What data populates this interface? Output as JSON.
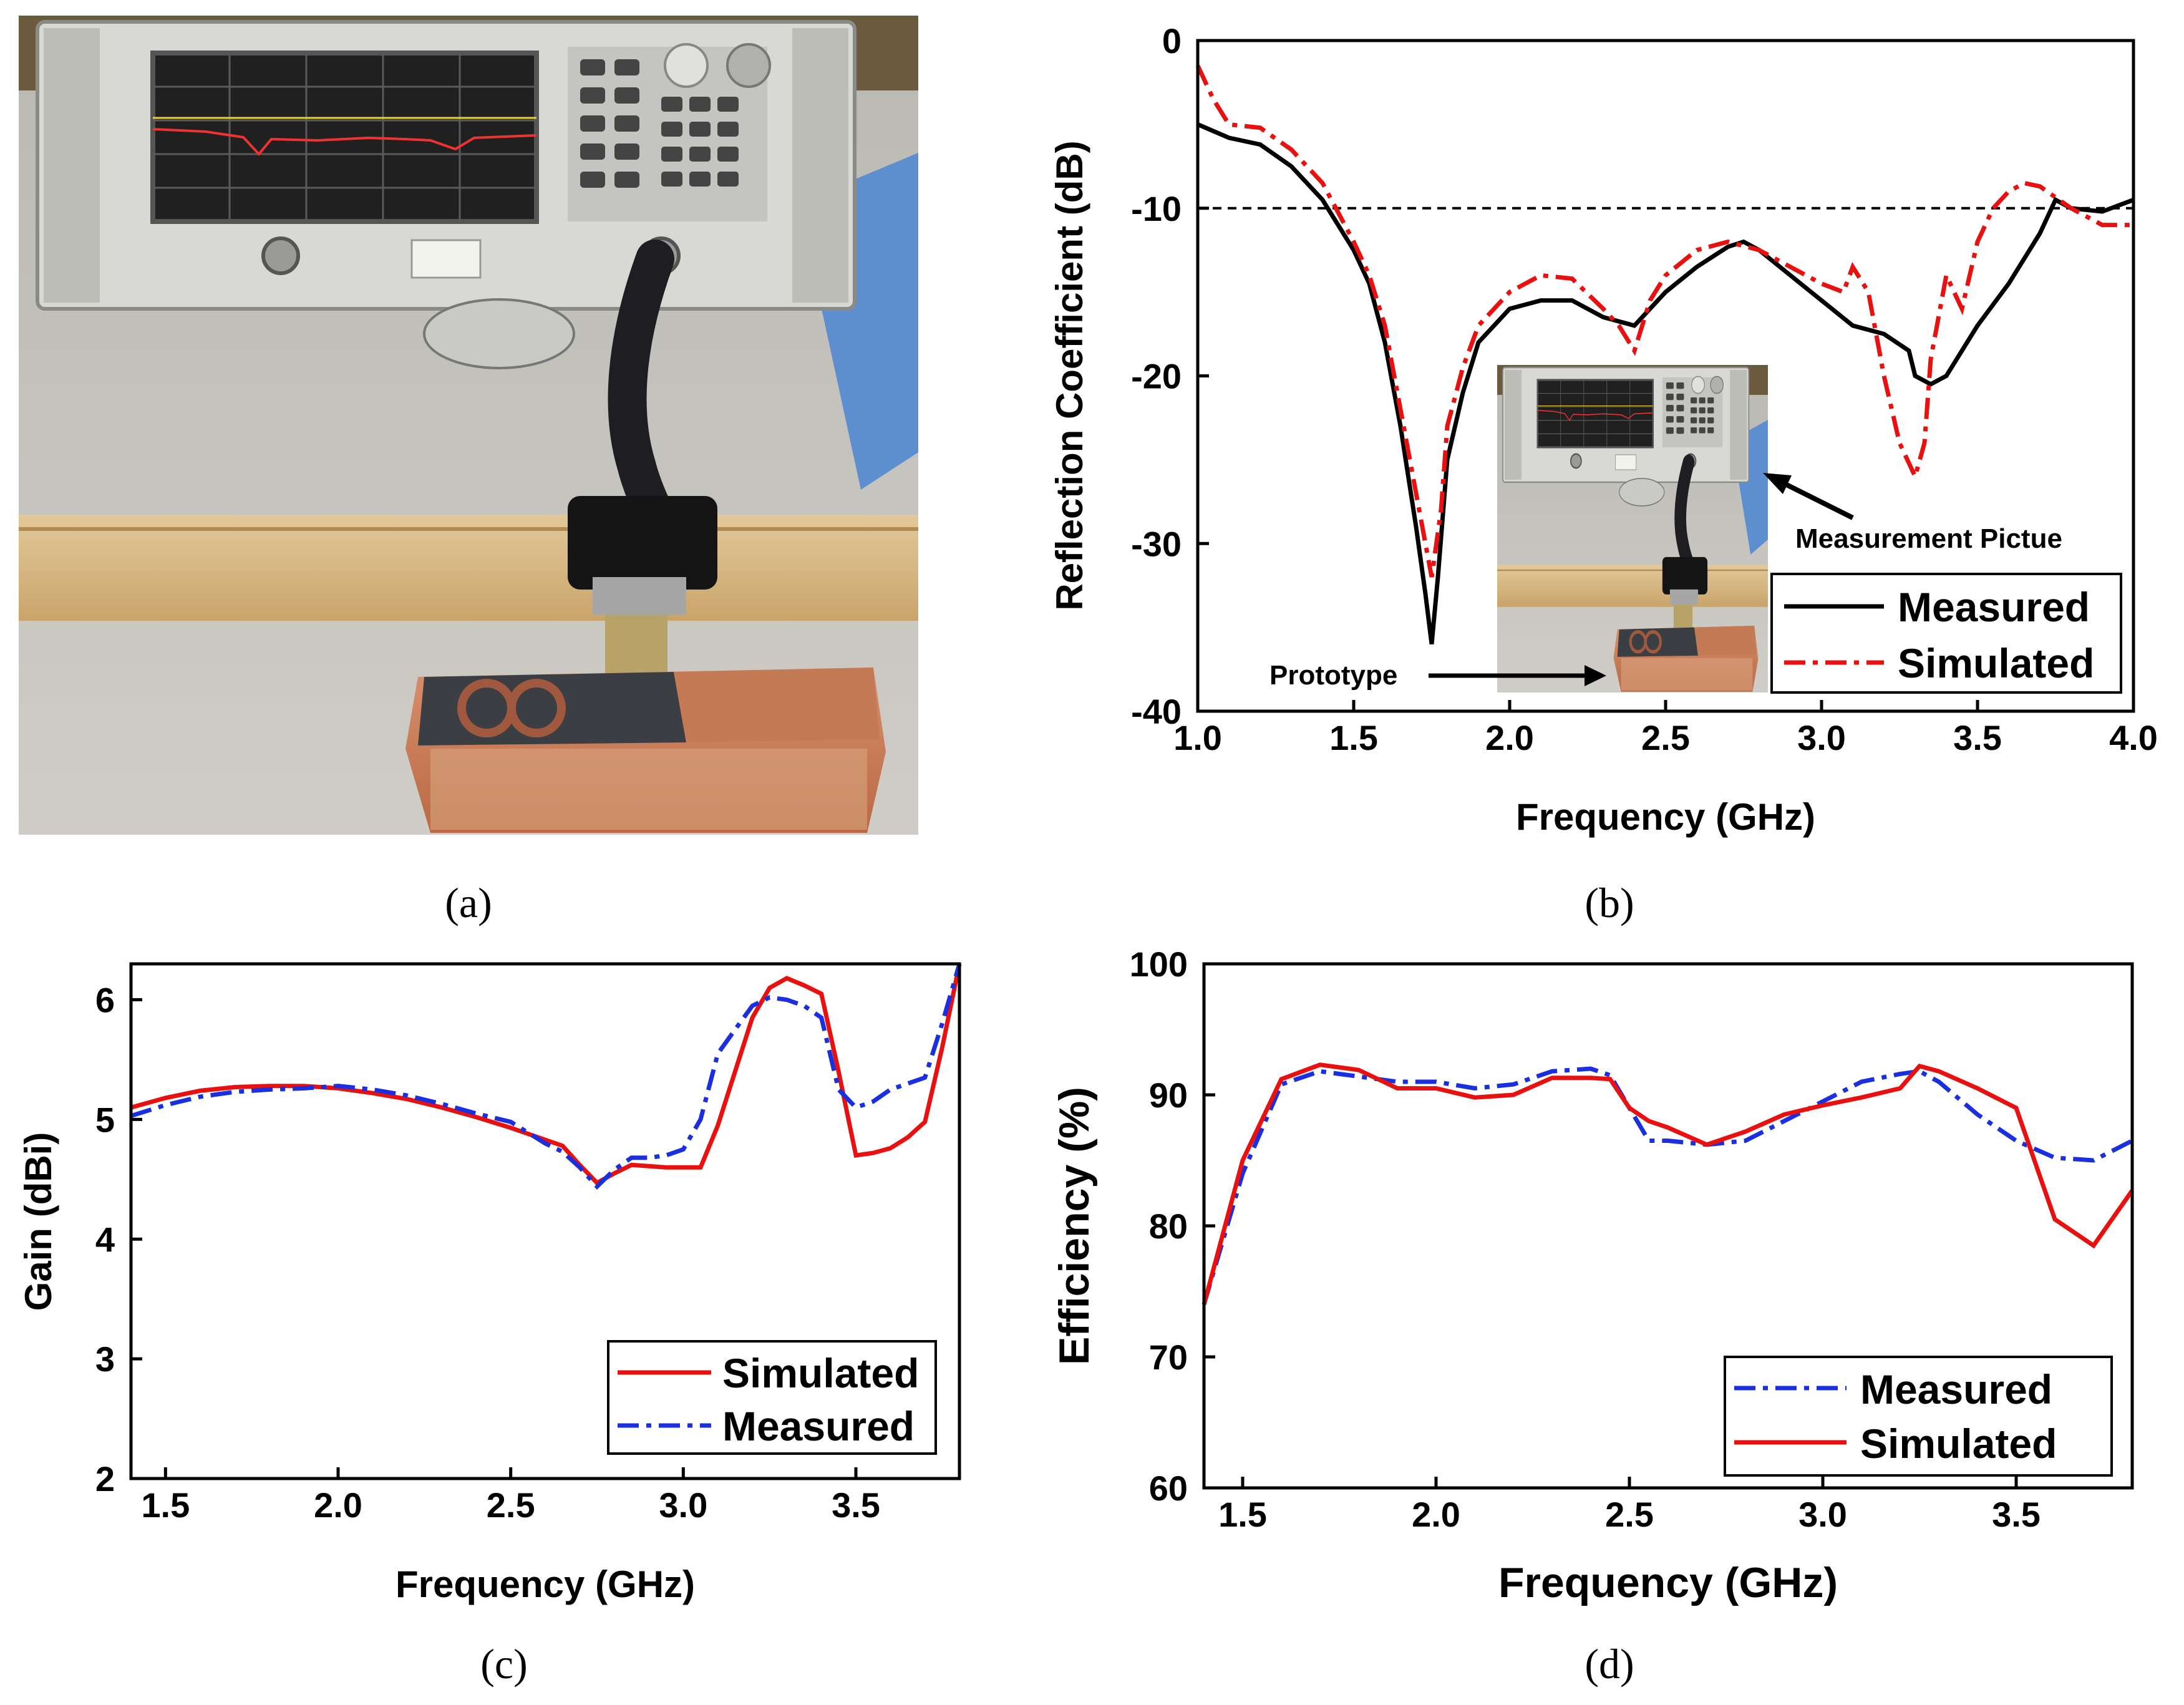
{
  "captions": {
    "a": "(a)",
    "b": "(b)",
    "c": "(c)",
    "d": "(d)"
  },
  "photo": {
    "panel": "Measurement setup photo with network analyzer, cable, and copper prototype"
  },
  "colors": {
    "measured_b": "#000000",
    "simulated_red": "#e8110f",
    "measured_blue": "#1a2fe0",
    "threshold": "#000000"
  },
  "chart_data": [
    {
      "id": "b",
      "type": "line",
      "xlabel": "Frequency (GHz)",
      "ylabel": "Reflection Coefficient (dB)",
      "xlim": [
        1.0,
        4.0
      ],
      "ylim": [
        -40,
        0
      ],
      "xticks": [
        1.0,
        1.5,
        2.0,
        2.5,
        3.0,
        3.5,
        4.0
      ],
      "xtick_labels": [
        "1.0",
        "1.5",
        "2.0",
        "2.5",
        "3.0",
        "3.5",
        "4.0"
      ],
      "yticks": [
        0,
        -10,
        -20,
        -30,
        -40
      ],
      "ytick_labels": [
        "0",
        "-10",
        "-20",
        "-30",
        "-40"
      ],
      "threshold": -10,
      "legend": [
        "Measured",
        "Simulated"
      ],
      "annotations": [
        "Measurement Pictue",
        "Prototype"
      ],
      "series": [
        {
          "name": "Measured",
          "style": "solid",
          "x": [
            1.0,
            1.1,
            1.2,
            1.3,
            1.4,
            1.5,
            1.55,
            1.6,
            1.65,
            1.7,
            1.73,
            1.75,
            1.77,
            1.8,
            1.85,
            1.9,
            2.0,
            2.1,
            2.2,
            2.3,
            2.4,
            2.5,
            2.6,
            2.7,
            2.75,
            2.8,
            2.9,
            3.0,
            3.1,
            3.2,
            3.28,
            3.3,
            3.35,
            3.4,
            3.5,
            3.6,
            3.7,
            3.75,
            3.8,
            3.9,
            4.0
          ],
          "y": [
            -5,
            -5.8,
            -6.2,
            -7.5,
            -9.5,
            -12.5,
            -14.5,
            -18,
            -23,
            -29,
            -33,
            -36,
            -32,
            -25,
            -21,
            -18,
            -16,
            -15.5,
            -15.5,
            -16.5,
            -17,
            -15,
            -13.5,
            -12.3,
            -12,
            -12.5,
            -14,
            -15.5,
            -17,
            -17.5,
            -18.5,
            -20,
            -20.5,
            -20,
            -17,
            -14.5,
            -11.5,
            -9.5,
            -10,
            -10.2,
            -9.5
          ]
        },
        {
          "name": "Simulated",
          "style": "dashdot",
          "x": [
            1.0,
            1.05,
            1.1,
            1.2,
            1.3,
            1.4,
            1.5,
            1.55,
            1.6,
            1.65,
            1.7,
            1.73,
            1.75,
            1.78,
            1.8,
            1.85,
            1.9,
            2.0,
            2.1,
            2.2,
            2.3,
            2.35,
            2.4,
            2.45,
            2.5,
            2.6,
            2.7,
            2.8,
            2.9,
            3.0,
            3.07,
            3.1,
            3.15,
            3.2,
            3.25,
            3.3,
            3.33,
            3.35,
            3.4,
            3.45,
            3.5,
            3.55,
            3.6,
            3.65,
            3.7,
            3.8,
            3.9,
            4.0
          ],
          "y": [
            -1.5,
            -3.5,
            -5,
            -5.2,
            -6.5,
            -8.5,
            -12,
            -14,
            -17,
            -22,
            -27,
            -30,
            -32,
            -28,
            -23,
            -19.5,
            -17,
            -15,
            -14,
            -14.2,
            -16,
            -17,
            -18.5,
            -15.5,
            -14,
            -12.5,
            -12,
            -12.5,
            -13.5,
            -14.5,
            -15,
            -13.5,
            -15,
            -20,
            -24,
            -26,
            -24,
            -19,
            -14,
            -16,
            -12,
            -10,
            -9,
            -8.5,
            -8.7,
            -10,
            -11,
            -11
          ]
        }
      ]
    },
    {
      "id": "c",
      "type": "line",
      "xlabel": "Frequency (GHz)",
      "ylabel": "Gain (dBi)",
      "xlim": [
        1.4,
        3.8
      ],
      "ylim": [
        2,
        6.3
      ],
      "xticks": [
        1.5,
        2.0,
        2.5,
        3.0,
        3.5
      ],
      "xtick_labels": [
        "1.5",
        "2.0",
        "2.5",
        "3.0",
        "3.5"
      ],
      "yticks": [
        2,
        3,
        4,
        5,
        6
      ],
      "ytick_labels": [
        "2",
        "3",
        "4",
        "5",
        "6"
      ],
      "legend": [
        "Simulated",
        "Measured"
      ],
      "series": [
        {
          "name": "Simulated",
          "style": "solid",
          "x": [
            1.4,
            1.5,
            1.6,
            1.7,
            1.8,
            1.9,
            2.0,
            2.1,
            2.2,
            2.3,
            2.4,
            2.5,
            2.6,
            2.65,
            2.7,
            2.75,
            2.8,
            2.85,
            2.9,
            2.95,
            3.0,
            3.05,
            3.1,
            3.15,
            3.2,
            3.25,
            3.3,
            3.35,
            3.4,
            3.45,
            3.5,
            3.55,
            3.6,
            3.65,
            3.7,
            3.75,
            3.8
          ],
          "y": [
            5.1,
            5.18,
            5.24,
            5.27,
            5.28,
            5.28,
            5.26,
            5.22,
            5.17,
            5.1,
            5.02,
            4.93,
            4.83,
            4.78,
            4.62,
            4.47,
            4.55,
            4.62,
            4.61,
            4.6,
            4.6,
            4.6,
            4.95,
            5.4,
            5.85,
            6.1,
            6.18,
            6.12,
            6.05,
            5.4,
            4.7,
            4.72,
            4.76,
            4.85,
            4.98,
            5.6,
            6.3
          ]
        },
        {
          "name": "Measured",
          "style": "dashdot",
          "x": [
            1.4,
            1.5,
            1.6,
            1.7,
            1.8,
            1.9,
            2.0,
            2.1,
            2.2,
            2.3,
            2.4,
            2.5,
            2.6,
            2.65,
            2.7,
            2.75,
            2.8,
            2.85,
            2.9,
            2.95,
            3.0,
            3.05,
            3.1,
            3.15,
            3.2,
            3.25,
            3.3,
            3.35,
            3.4,
            3.45,
            3.5,
            3.55,
            3.6,
            3.65,
            3.7,
            3.75,
            3.8
          ],
          "y": [
            5.03,
            5.12,
            5.19,
            5.23,
            5.25,
            5.26,
            5.28,
            5.25,
            5.2,
            5.13,
            5.05,
            4.98,
            4.8,
            4.73,
            4.6,
            4.44,
            4.58,
            4.68,
            4.68,
            4.7,
            4.75,
            5.0,
            5.55,
            5.75,
            5.95,
            6.02,
            6.0,
            5.95,
            5.85,
            5.25,
            5.1,
            5.15,
            5.25,
            5.3,
            5.35,
            5.8,
            6.3
          ]
        }
      ]
    },
    {
      "id": "d",
      "type": "line",
      "xlabel": "Frequency (GHz)",
      "ylabel": "Efficiency (%)",
      "xlim": [
        1.4,
        3.8
      ],
      "ylim": [
        60,
        100
      ],
      "xticks": [
        1.5,
        2.0,
        2.5,
        3.0,
        3.5
      ],
      "xtick_labels": [
        "1.5",
        "2.0",
        "2.5",
        "3.0",
        "3.5"
      ],
      "yticks": [
        60,
        70,
        80,
        90,
        100
      ],
      "ytick_labels": [
        "60",
        "70",
        "80",
        "90",
        "100"
      ],
      "legend": [
        "Measured",
        "Simulated"
      ],
      "series": [
        {
          "name": "Measured",
          "style": "dashdot",
          "x": [
            1.4,
            1.5,
            1.6,
            1.7,
            1.8,
            1.9,
            2.0,
            2.1,
            2.2,
            2.3,
            2.4,
            2.45,
            2.5,
            2.55,
            2.6,
            2.7,
            2.8,
            2.9,
            3.0,
            3.1,
            3.2,
            3.25,
            3.3,
            3.4,
            3.5,
            3.6,
            3.7,
            3.8
          ],
          "y": [
            74,
            84,
            90.8,
            91.8,
            91.4,
            91,
            91,
            90.5,
            90.8,
            91.8,
            92,
            91.5,
            89,
            86.5,
            86.5,
            86.2,
            86.5,
            88,
            89.5,
            91,
            91.6,
            91.8,
            91,
            88.5,
            86.5,
            85.2,
            85,
            86.5
          ]
        },
        {
          "name": "Simulated",
          "style": "solid",
          "x": [
            1.4,
            1.5,
            1.6,
            1.7,
            1.8,
            1.9,
            2.0,
            2.1,
            2.2,
            2.3,
            2.4,
            2.45,
            2.5,
            2.55,
            2.6,
            2.7,
            2.8,
            2.9,
            3.0,
            3.1,
            3.2,
            3.25,
            3.3,
            3.4,
            3.5,
            3.6,
            3.7,
            3.8
          ],
          "y": [
            74,
            85,
            91.2,
            92.3,
            91.9,
            90.5,
            90.5,
            89.8,
            90,
            91.3,
            91.3,
            91.2,
            89,
            88,
            87.5,
            86.2,
            87.2,
            88.5,
            89.2,
            89.8,
            90.5,
            92.2,
            91.8,
            90.5,
            89,
            80.5,
            78.5,
            82.7
          ]
        }
      ]
    }
  ]
}
